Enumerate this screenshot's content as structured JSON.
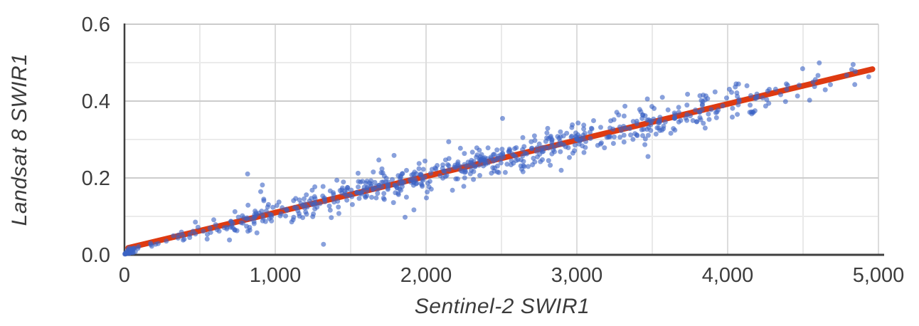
{
  "chart_data": {
    "type": "scatter",
    "title": "",
    "xlabel": "Sentinel-2 SWIR1",
    "ylabel": "Landsat 8 SWIR1",
    "xlim": [
      0,
      5000
    ],
    "ylim": [
      0,
      0.6
    ],
    "grid": true,
    "legend": false,
    "x_major_ticks": [
      {
        "value": 0,
        "label": "0"
      },
      {
        "value": 1000,
        "label": "1,000"
      },
      {
        "value": 2000,
        "label": "2,000"
      },
      {
        "value": 3000,
        "label": "3,000"
      },
      {
        "value": 4000,
        "label": "4,000"
      },
      {
        "value": 5000,
        "label": "5,000"
      }
    ],
    "x_minor_ticks": [
      500,
      1500,
      2500,
      3500,
      4500
    ],
    "y_major_ticks": [
      {
        "value": 0.0,
        "label": "0.0"
      },
      {
        "value": 0.2,
        "label": "0.2"
      },
      {
        "value": 0.4,
        "label": "0.4"
      },
      {
        "value": 0.6,
        "label": "0.6"
      }
    ],
    "y_minor_ticks": [
      0.1,
      0.3,
      0.5
    ],
    "trendline": {
      "type": "linear",
      "x_start": 25,
      "y_start": 0.018,
      "x_end": 4960,
      "y_end": 0.483,
      "intercept": 0.0156,
      "slope": 9.42e-05,
      "color": "#de3a11",
      "stroke_width": 8
    },
    "points": {
      "count": 702,
      "color": "#3a62c4",
      "opacity": 0.6,
      "radius": 3.5,
      "seed": 20240613,
      "relation": "y = 0.0156 + 0.0000942x + gaussian noise",
      "bands_format": [
        "x_min",
        "x_max",
        "count",
        "y_sigma",
        "y_offset"
      ],
      "bands": [
        [
          0,
          70,
          28,
          0.004,
          -0.01
        ],
        [
          70,
          300,
          9,
          0.006,
          -0.008
        ],
        [
          300,
          700,
          26,
          0.014,
          -0.004
        ],
        [
          700,
          1100,
          60,
          0.017,
          0
        ],
        [
          1100,
          1600,
          85,
          0.019,
          0
        ],
        [
          1600,
          2100,
          105,
          0.021,
          0
        ],
        [
          2100,
          2600,
          110,
          0.021,
          0
        ],
        [
          2600,
          3100,
          100,
          0.022,
          0
        ],
        [
          3100,
          3600,
          75,
          0.022,
          0
        ],
        [
          3600,
          4100,
          62,
          0.024,
          0
        ],
        [
          4100,
          4500,
          28,
          0.021,
          0
        ],
        [
          4500,
          4980,
          14,
          0.016,
          0
        ]
      ],
      "outlier_rate": 0.055,
      "outlier_scale": 3.0,
      "y_clamp": [
        0.002,
        0.592
      ]
    },
    "colors": {
      "point": "#3a62c4",
      "trendline": "#de3a11",
      "axis": "#3f3f3f",
      "grid_major_h": "#cccccc",
      "grid_minor_h": "#ebebeb",
      "grid_major_v": "#dcdcdc",
      "grid_minor_v": "#e9e9e9",
      "text": "#3d3d3d",
      "background": "#ffffff"
    }
  }
}
